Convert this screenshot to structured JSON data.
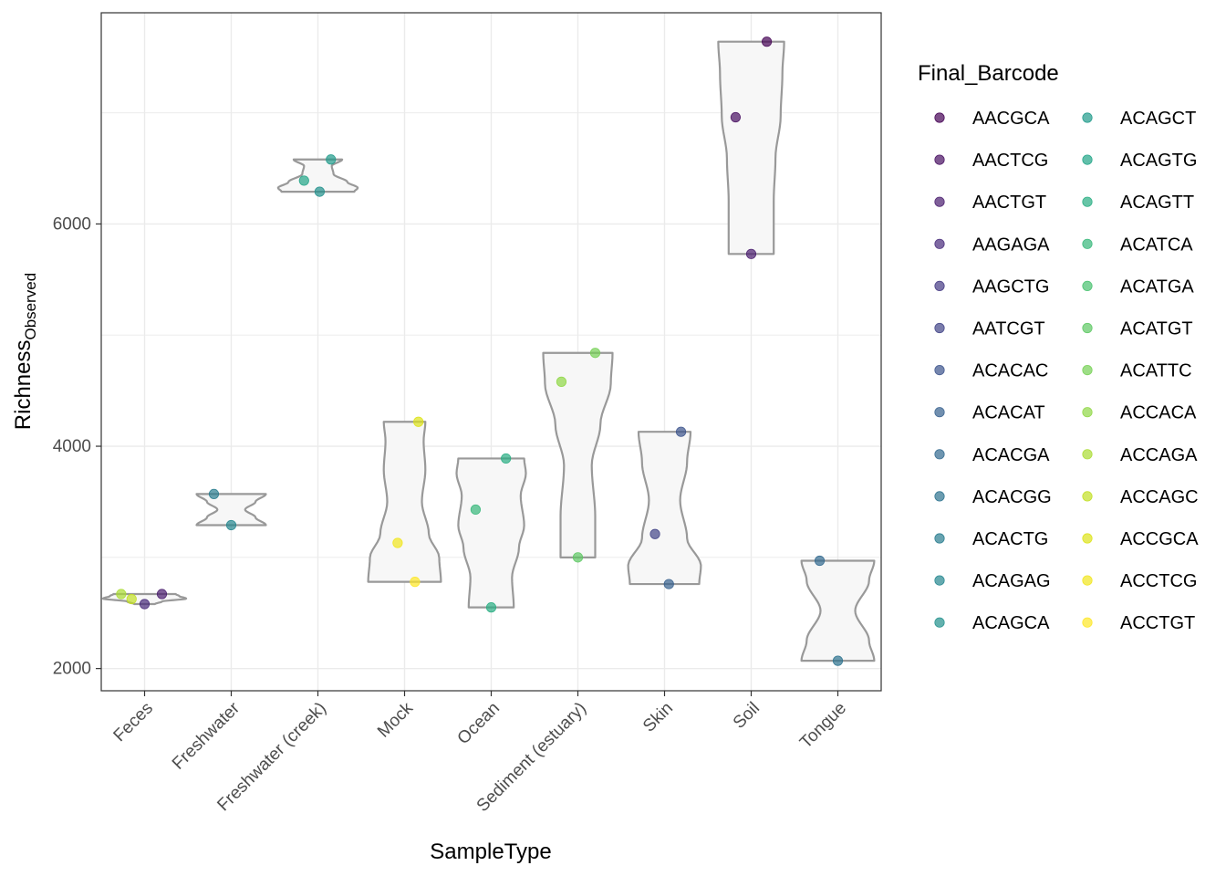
{
  "chart_data": {
    "type": "violin",
    "xlabel": "SampleType",
    "ylabel": {
      "main": "Richness",
      "subscript": "Observed"
    },
    "ylim": [
      1800,
      7900
    ],
    "yticks": [
      2000,
      4000,
      6000
    ],
    "grid": true,
    "legend_position": "right",
    "categories": [
      "Feces",
      "Freshwater",
      "Freshwater (creek)",
      "Mock",
      "Ocean",
      "Sediment (estuary)",
      "Skin",
      "Soil",
      "Tongue"
    ],
    "legend": {
      "title": "Final_Barcode",
      "entries": [
        {
          "label": "AACGCA",
          "color": "#440154"
        },
        {
          "label": "AACTCG",
          "color": "#470E61"
        },
        {
          "label": "AACTGT",
          "color": "#481B6D"
        },
        {
          "label": "AAGAGA",
          "color": "#472A7A"
        },
        {
          "label": "AAGCTG",
          "color": "#443983"
        },
        {
          "label": "AATCGT",
          "color": "#414487"
        },
        {
          "label": "ACACAC",
          "color": "#3B528B"
        },
        {
          "label": "ACACAT",
          "color": "#355F8D"
        },
        {
          "label": "ACACGA",
          "color": "#31688E"
        },
        {
          "label": "ACACGG",
          "color": "#2C728E"
        },
        {
          "label": "ACACTG",
          "color": "#287C8E"
        },
        {
          "label": "ACAGAG",
          "color": "#24868E"
        },
        {
          "label": "ACAGCA",
          "color": "#21908C"
        },
        {
          "label": "ACAGCT",
          "color": "#1F9A8A"
        },
        {
          "label": "ACAGTG",
          "color": "#20A486"
        },
        {
          "label": "ACAGTT",
          "color": "#27AD81"
        },
        {
          "label": "ACATCA",
          "color": "#35B779"
        },
        {
          "label": "ACATGA",
          "color": "#47C16E"
        },
        {
          "label": "ACATGT",
          "color": "#5DC863"
        },
        {
          "label": "ACATTC",
          "color": "#75D054"
        },
        {
          "label": "ACCACA",
          "color": "#8FD744"
        },
        {
          "label": "ACCAGA",
          "color": "#AADC32"
        },
        {
          "label": "ACCAGC",
          "color": "#C2DF23"
        },
        {
          "label": "ACCGCA",
          "color": "#DDE318"
        },
        {
          "label": "ACCTCG",
          "color": "#F1E51D"
        },
        {
          "label": "ACCTGT",
          "color": "#FDE725"
        }
      ]
    },
    "points": [
      {
        "category": "Feces",
        "barcode": "ACCAGA",
        "y": 2670,
        "jitter": -0.27
      },
      {
        "category": "Feces",
        "barcode": "ACCAGC",
        "y": 2625,
        "jitter": -0.15
      },
      {
        "category": "Feces",
        "barcode": "AAGAGA",
        "y": 2580,
        "jitter": 0.0
      },
      {
        "category": "Feces",
        "barcode": "AACTGT",
        "y": 2670,
        "jitter": 0.2
      },
      {
        "category": "Freshwater",
        "barcode": "ACACTG",
        "y": 3570,
        "jitter": -0.2
      },
      {
        "category": "Freshwater",
        "barcode": "ACAGAG",
        "y": 3290,
        "jitter": 0.0
      },
      {
        "category": "Freshwater (creek)",
        "barcode": "ACAGTG",
        "y": 6390,
        "jitter": -0.16
      },
      {
        "category": "Freshwater (creek)",
        "barcode": "ACAGCA",
        "y": 6290,
        "jitter": 0.02
      },
      {
        "category": "Freshwater (creek)",
        "barcode": "ACAGCT",
        "y": 6580,
        "jitter": 0.15
      },
      {
        "category": "Mock",
        "barcode": "ACCGCA",
        "y": 4220,
        "jitter": 0.16
      },
      {
        "category": "Mock",
        "barcode": "ACCTCG",
        "y": 3130,
        "jitter": -0.08
      },
      {
        "category": "Mock",
        "barcode": "ACCTGT",
        "y": 2780,
        "jitter": 0.12
      },
      {
        "category": "Ocean",
        "barcode": "ACAGTT",
        "y": 3890,
        "jitter": 0.17
      },
      {
        "category": "Ocean",
        "barcode": "ACATCA",
        "y": 3430,
        "jitter": -0.18
      },
      {
        "category": "Ocean",
        "barcode": "ACAGTT",
        "y": 2550,
        "jitter": 0.0
      },
      {
        "category": "Sediment (estuary)",
        "barcode": "ACATTC",
        "y": 4840,
        "jitter": 0.2
      },
      {
        "category": "Sediment (estuary)",
        "barcode": "ACCACA",
        "y": 4580,
        "jitter": -0.19
      },
      {
        "category": "Sediment (estuary)",
        "barcode": "ACATGT",
        "y": 3000,
        "jitter": 0.0
      },
      {
        "category": "Skin",
        "barcode": "ACACAC",
        "y": 4130,
        "jitter": 0.19
      },
      {
        "category": "Skin",
        "barcode": "AATCGT",
        "y": 3210,
        "jitter": -0.11
      },
      {
        "category": "Skin",
        "barcode": "ACACAT",
        "y": 2760,
        "jitter": 0.05
      },
      {
        "category": "Soil",
        "barcode": "AACGCA",
        "y": 7640,
        "jitter": 0.18
      },
      {
        "category": "Soil",
        "barcode": "AACTCG",
        "y": 6960,
        "jitter": -0.18
      },
      {
        "category": "Soil",
        "barcode": "AACTGT",
        "y": 5730,
        "jitter": 0.0
      },
      {
        "category": "Tongue",
        "barcode": "ACACGA",
        "y": 2970,
        "jitter": -0.21
      },
      {
        "category": "Tongue",
        "barcode": "ACACGG",
        "y": 2070,
        "jitter": 0.0
      }
    ],
    "violins": [
      {
        "category": "Feces",
        "min": 2580,
        "max": 2670,
        "profile": [
          [
            0.0,
            0.12
          ],
          [
            0.25,
            0.2
          ],
          [
            0.55,
            0.48
          ],
          [
            0.8,
            0.4
          ],
          [
            1.0,
            0.36
          ]
        ]
      },
      {
        "category": "Freshwater",
        "min": 3290,
        "max": 3570,
        "profile": [
          [
            0.0,
            0.4
          ],
          [
            0.25,
            0.28
          ],
          [
            0.5,
            0.16
          ],
          [
            0.75,
            0.28
          ],
          [
            1.0,
            0.4
          ]
        ]
      },
      {
        "category": "Freshwater (creek)",
        "min": 6290,
        "max": 6580,
        "profile": [
          [
            0.0,
            0.42
          ],
          [
            0.12,
            0.46
          ],
          [
            0.3,
            0.34
          ],
          [
            0.55,
            0.18
          ],
          [
            0.8,
            0.16
          ],
          [
            1.0,
            0.28
          ]
        ]
      },
      {
        "category": "Mock",
        "min": 2780,
        "max": 4220,
        "profile": [
          [
            0.0,
            0.42
          ],
          [
            0.15,
            0.4
          ],
          [
            0.3,
            0.28
          ],
          [
            0.5,
            0.2
          ],
          [
            0.7,
            0.24
          ],
          [
            0.88,
            0.22
          ],
          [
            1.0,
            0.24
          ]
        ]
      },
      {
        "category": "Ocean",
        "min": 2550,
        "max": 3890,
        "profile": [
          [
            0.0,
            0.26
          ],
          [
            0.2,
            0.24
          ],
          [
            0.4,
            0.32
          ],
          [
            0.55,
            0.38
          ],
          [
            0.75,
            0.34
          ],
          [
            0.9,
            0.4
          ],
          [
            1.0,
            0.38
          ]
        ]
      },
      {
        "category": "Sediment (estuary)",
        "min": 3000,
        "max": 4840,
        "profile": [
          [
            0.0,
            0.2
          ],
          [
            0.2,
            0.2
          ],
          [
            0.45,
            0.16
          ],
          [
            0.65,
            0.26
          ],
          [
            0.85,
            0.38
          ],
          [
            1.0,
            0.4
          ]
        ]
      },
      {
        "category": "Skin",
        "min": 2760,
        "max": 4130,
        "profile": [
          [
            0.0,
            0.4
          ],
          [
            0.12,
            0.42
          ],
          [
            0.3,
            0.26
          ],
          [
            0.55,
            0.18
          ],
          [
            0.8,
            0.26
          ],
          [
            1.0,
            0.3
          ]
        ]
      },
      {
        "category": "Soil",
        "min": 5730,
        "max": 7640,
        "profile": [
          [
            0.0,
            0.26
          ],
          [
            0.25,
            0.26
          ],
          [
            0.45,
            0.28
          ],
          [
            0.65,
            0.34
          ],
          [
            0.85,
            0.36
          ],
          [
            1.0,
            0.38
          ]
        ]
      },
      {
        "category": "Tongue",
        "min": 2070,
        "max": 2970,
        "profile": [
          [
            0.0,
            0.42
          ],
          [
            0.2,
            0.36
          ],
          [
            0.5,
            0.2
          ],
          [
            0.8,
            0.36
          ],
          [
            1.0,
            0.42
          ]
        ]
      }
    ]
  }
}
